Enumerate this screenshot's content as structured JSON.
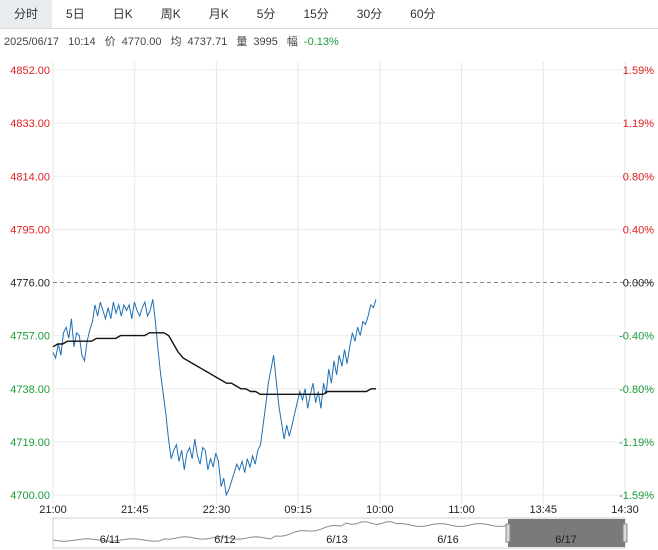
{
  "tabs": [
    "分时",
    "5日",
    "日K",
    "周K",
    "月K",
    "5分",
    "15分",
    "30分",
    "60分"
  ],
  "active_tab": "分时",
  "info": {
    "date": "2025/06/17",
    "time": "10:14",
    "price_label": "价",
    "price": "4770.00",
    "avg_label": "均",
    "avg": "4737.71",
    "volume_label": "量",
    "volume": "3995",
    "change_label": "幅",
    "change": "-0.13%"
  },
  "colors": {
    "price_line": "#1f6fb4",
    "avg_line": "#111111",
    "up": "#e02020",
    "down": "#1a9d3a",
    "navigator_fill": "#7a7a7a"
  },
  "chart_data": {
    "type": "line",
    "y_left_ticks": [
      "4852.00",
      "4833.00",
      "4814.00",
      "4795.00",
      "4776.00",
      "4757.00",
      "4738.00",
      "4719.00",
      "4700.00"
    ],
    "y_right_ticks": [
      "1.59%",
      "1.19%",
      "0.80%",
      "0.40%",
      "0.00%",
      "-0.40%",
      "-0.80%",
      "-1.19%",
      "-1.59%"
    ],
    "x_ticks": [
      "21:00",
      "21:45",
      "22:30",
      "09:15",
      "10:00",
      "11:00",
      "13:45",
      "14:30"
    ],
    "ylim": [
      4700,
      4852
    ],
    "prev_close": 4776,
    "series": [
      {
        "values": [
          4751,
          4749,
          4754,
          4750,
          4758,
          4760,
          4756,
          4763,
          4753,
          4758,
          4757,
          4750,
          4748,
          4755,
          4759,
          4762,
          4768,
          4764,
          4769,
          4766,
          4763,
          4767,
          4763,
          4769,
          4765,
          4768,
          4764,
          4768,
          4766,
          4768,
          4763,
          4769,
          4766,
          4764,
          4767,
          4769,
          4764,
          4766,
          4770,
          4762,
          4752,
          4743,
          4736,
          4729,
          4720,
          4713,
          4716,
          4718,
          4712,
          4716,
          4709,
          4715,
          4717,
          4713,
          4720,
          4714,
          4711,
          4717,
          4716,
          4709,
          4713,
          4710,
          4715,
          4712,
          4703,
          4706,
          4700,
          4702,
          4705,
          4708,
          4711,
          4709,
          4712,
          4708,
          4713,
          4710,
          4714,
          4711,
          4716,
          4718,
          4725,
          4732,
          4740,
          4745,
          4750,
          4741,
          4732,
          4726,
          4720,
          4725,
          4721,
          4725,
          4729,
          4733,
          4737,
          4734,
          4738,
          4731,
          4736,
          4740,
          4733,
          4737,
          4731,
          4740,
          4736,
          4745,
          4740,
          4748,
          4743,
          4750,
          4746,
          4752,
          4747,
          4753,
          4758,
          4755,
          4760,
          4757,
          4762,
          4761,
          4764,
          4768,
          4767,
          4770
        ]
      },
      {
        "values": [
          4753,
          4754,
          4754,
          4755,
          4755,
          4755,
          4755,
          4755,
          4755,
          4756,
          4756,
          4756,
          4756,
          4756,
          4757,
          4757,
          4757,
          4757,
          4757,
          4757,
          4758,
          4758,
          4758,
          4758,
          4757,
          4754,
          4751,
          4749,
          4748,
          4747,
          4746,
          4745,
          4744,
          4743,
          4742,
          4741,
          4740,
          4740,
          4739,
          4738,
          4738,
          4737,
          4737,
          4736,
          4736,
          4736,
          4736,
          4736,
          4736,
          4736,
          4736,
          4736,
          4736,
          4736,
          4736,
          4736,
          4736,
          4737,
          4737,
          4737,
          4737,
          4737,
          4737,
          4737,
          4737,
          4737,
          4738,
          4738
        ]
      }
    ]
  },
  "navigator": {
    "days": [
      "6/11",
      "6/12",
      "6/13",
      "6/16",
      "6/17"
    ]
  }
}
